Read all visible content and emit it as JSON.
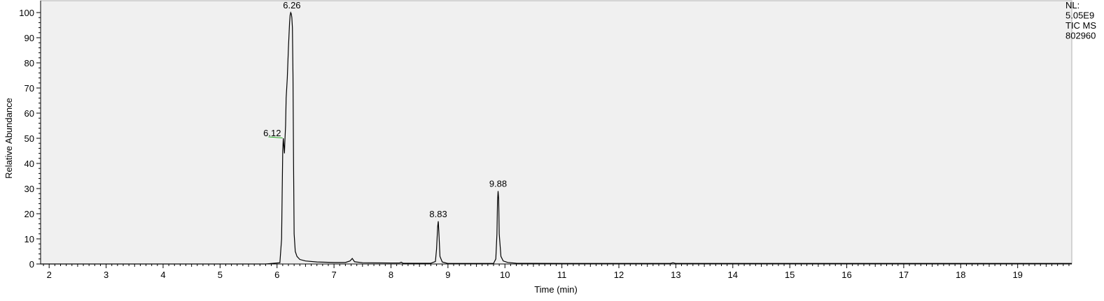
{
  "chart_data": {
    "type": "line",
    "xlabel": "Time (min)",
    "ylabel": "Relative Abundance",
    "xlim": [
      1.85,
      19.95
    ],
    "ylim": [
      0,
      100
    ],
    "x_ticks": [
      2,
      3,
      4,
      5,
      6,
      7,
      8,
      9,
      10,
      11,
      12,
      13,
      14,
      15,
      16,
      17,
      18,
      19
    ],
    "y_ticks": [
      0,
      10,
      20,
      30,
      40,
      50,
      60,
      70,
      80,
      90,
      100
    ],
    "grid": false,
    "info_lines": [
      "NL:",
      "5.05E9",
      "TIC  MS",
      "802960"
    ],
    "series": [
      {
        "x": [
          1.85,
          5.8,
          6.05,
          6.08,
          6.09,
          6.1,
          6.11,
          6.12,
          6.13,
          6.14,
          6.15,
          6.16,
          6.17,
          6.18,
          6.19,
          6.2,
          6.21,
          6.22,
          6.23,
          6.24,
          6.25,
          6.26,
          6.27,
          6.28,
          6.29,
          6.3,
          6.32,
          6.35,
          6.4,
          6.5,
          6.7,
          7.0,
          7.2,
          7.28,
          7.32,
          7.36,
          7.5,
          8.0,
          8.15,
          8.18,
          8.21,
          8.7,
          8.78,
          8.8,
          8.82,
          8.83,
          8.84,
          8.86,
          8.9,
          9.0,
          9.5,
          9.8,
          9.84,
          9.86,
          9.87,
          9.88,
          9.89,
          9.9,
          9.93,
          9.97,
          10.05,
          10.2,
          11.0,
          12.0,
          12.9,
          12.95,
          13.0,
          14.0,
          16.0,
          19.95
        ],
        "y": [
          0,
          0,
          0.5,
          10,
          28,
          45,
          50,
          47,
          44,
          50,
          55,
          66,
          70,
          74,
          80,
          86,
          91,
          96,
          99,
          100,
          99.5,
          98,
          94,
          75,
          40,
          12,
          5,
          3,
          1.8,
          1.2,
          0.8,
          0.6,
          0.6,
          1.2,
          2.2,
          0.9,
          0.5,
          0.4,
          0.4,
          0.7,
          0.3,
          0.3,
          1.0,
          6,
          15,
          17,
          13,
          3,
          0.8,
          0.2,
          0.2,
          0.2,
          2,
          12,
          25,
          29,
          26,
          12,
          3,
          1.2,
          0.6,
          0.3,
          0.2,
          0.2,
          0.2,
          0.5,
          0.2,
          0.2,
          0.2,
          0.2
        ]
      }
    ],
    "annotations": [
      {
        "label": "6.26",
        "x": 6.26,
        "y": 100,
        "align": "top"
      },
      {
        "label": "6.12",
        "x": 6.12,
        "y": 50,
        "align": "left"
      },
      {
        "label": "8.83",
        "x": 8.83,
        "y": 17,
        "align": "top"
      },
      {
        "label": "9.88",
        "x": 9.88,
        "y": 29,
        "align": "top"
      }
    ]
  }
}
